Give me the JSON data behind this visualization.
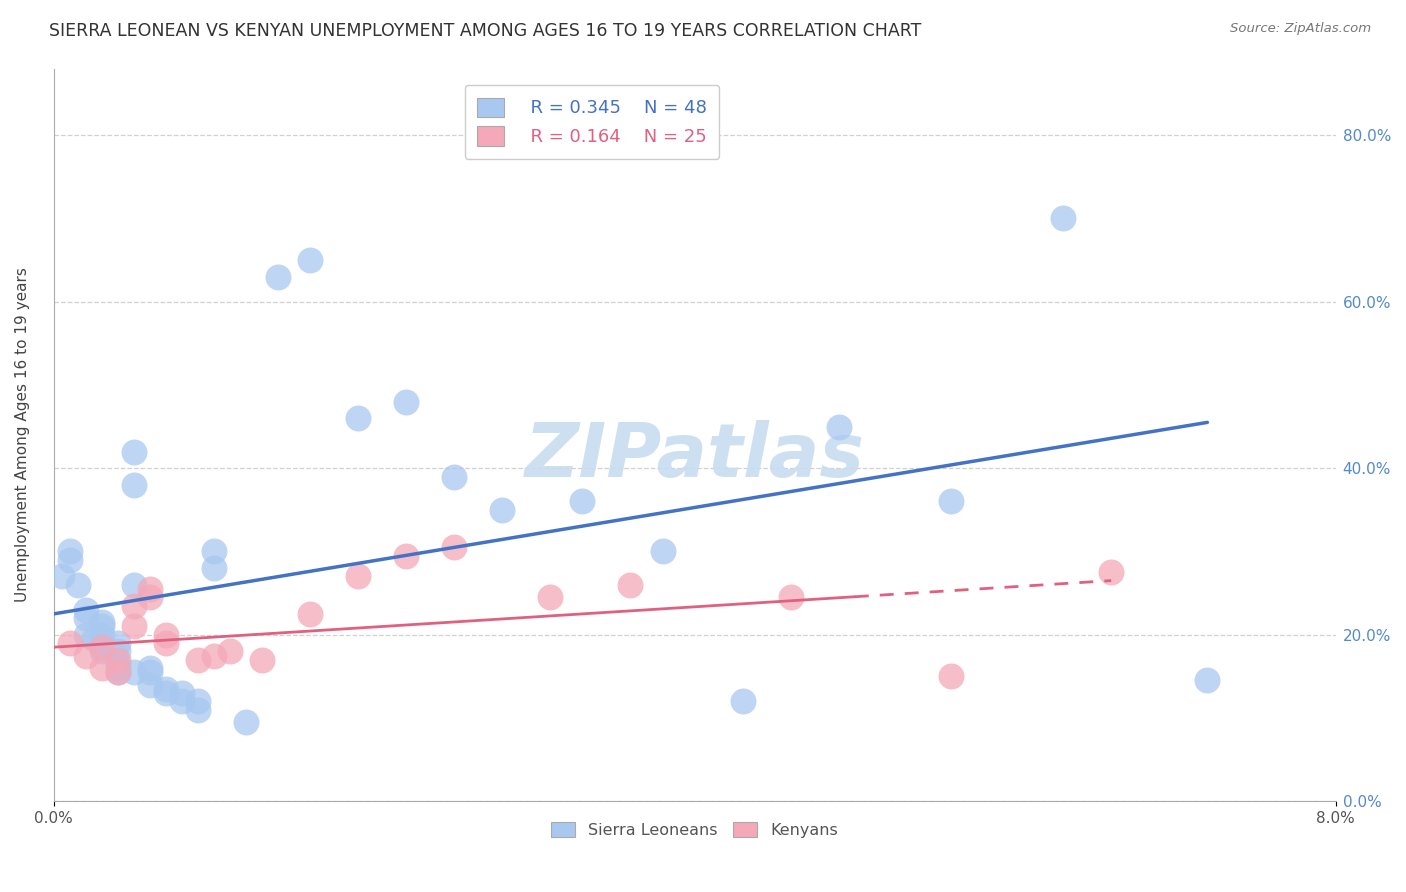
{
  "title": "SIERRA LEONEAN VS KENYAN UNEMPLOYMENT AMONG AGES 16 TO 19 YEARS CORRELATION CHART",
  "source_text": "Source: ZipAtlas.com",
  "ylabel": "Unemployment Among Ages 16 to 19 years",
  "xlim": [
    0.0,
    0.08
  ],
  "ylim": [
    0.0,
    0.88
  ],
  "xtick_positions": [
    0.0,
    0.08
  ],
  "xticklabels": [
    "0.0%",
    "8.0%"
  ],
  "ytick_positions": [
    0.0,
    0.2,
    0.4,
    0.6,
    0.8
  ],
  "yticklabels": [
    "0.0%",
    "20.0%",
    "40.0%",
    "60.0%",
    "80.0%"
  ],
  "blue_scatter_color": "#a8c8f0",
  "pink_scatter_color": "#f4a8b8",
  "blue_line_color": "#4472c4",
  "pink_line_color": "#e06080",
  "ytick_color": "#5588cc",
  "legend_blue_R": "R = 0.345",
  "legend_blue_N": "N = 48",
  "legend_pink_R": "R = 0.164",
  "legend_pink_N": "N = 25",
  "watermark": "ZIPatlas",
  "watermark_color": "#c8ddf0",
  "legend_label_blue": "Sierra Leoneans",
  "legend_label_pink": "Kenyans",
  "blue_x": [
    0.0005,
    0.001,
    0.001,
    0.0015,
    0.002,
    0.002,
    0.002,
    0.0025,
    0.003,
    0.003,
    0.003,
    0.003,
    0.003,
    0.003,
    0.004,
    0.004,
    0.004,
    0.004,
    0.004,
    0.005,
    0.005,
    0.005,
    0.005,
    0.006,
    0.006,
    0.006,
    0.007,
    0.007,
    0.008,
    0.008,
    0.009,
    0.009,
    0.01,
    0.01,
    0.012,
    0.014,
    0.016,
    0.019,
    0.022,
    0.025,
    0.028,
    0.033,
    0.038,
    0.043,
    0.049,
    0.056,
    0.063,
    0.072
  ],
  "blue_y": [
    0.27,
    0.29,
    0.3,
    0.26,
    0.2,
    0.22,
    0.23,
    0.195,
    0.18,
    0.185,
    0.19,
    0.2,
    0.21,
    0.215,
    0.155,
    0.16,
    0.165,
    0.18,
    0.19,
    0.155,
    0.26,
    0.38,
    0.42,
    0.14,
    0.155,
    0.16,
    0.13,
    0.135,
    0.12,
    0.13,
    0.11,
    0.12,
    0.28,
    0.3,
    0.095,
    0.63,
    0.65,
    0.46,
    0.48,
    0.39,
    0.35,
    0.36,
    0.3,
    0.12,
    0.45,
    0.36,
    0.7,
    0.145
  ],
  "pink_x": [
    0.001,
    0.002,
    0.003,
    0.003,
    0.004,
    0.004,
    0.005,
    0.005,
    0.006,
    0.006,
    0.007,
    0.007,
    0.009,
    0.01,
    0.011,
    0.013,
    0.016,
    0.019,
    0.022,
    0.025,
    0.031,
    0.036,
    0.046,
    0.056,
    0.066
  ],
  "pink_y": [
    0.19,
    0.175,
    0.16,
    0.185,
    0.155,
    0.17,
    0.21,
    0.235,
    0.245,
    0.255,
    0.19,
    0.2,
    0.17,
    0.175,
    0.18,
    0.17,
    0.225,
    0.27,
    0.295,
    0.305,
    0.245,
    0.26,
    0.245,
    0.15,
    0.275
  ],
  "blue_trend_x": [
    0.0,
    0.072
  ],
  "blue_trend_y": [
    0.225,
    0.455
  ],
  "pink_trend_x": [
    0.0,
    0.066
  ],
  "pink_trend_y": [
    0.185,
    0.265
  ],
  "grid_yticks": [
    0.0,
    0.2,
    0.4,
    0.6,
    0.8
  ],
  "grid_color": "#cccccc",
  "bg_color": "#ffffff",
  "title_fontsize": 12.5,
  "axis_label_fontsize": 11,
  "tick_fontsize": 11,
  "legend_fontsize": 13
}
